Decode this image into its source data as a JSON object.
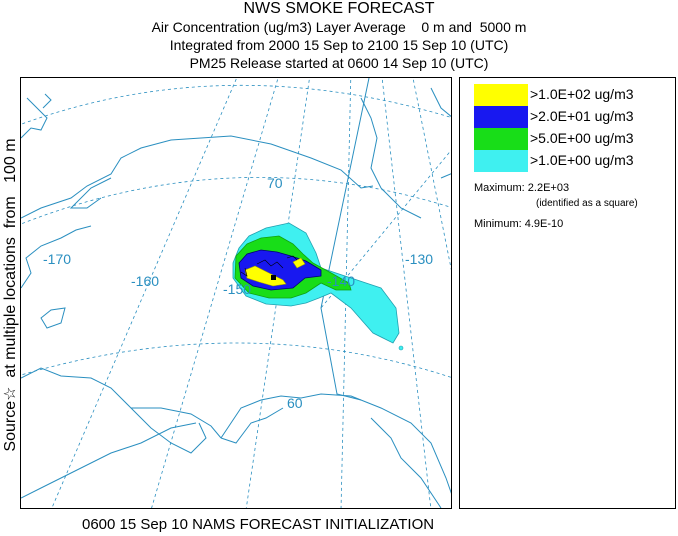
{
  "header": {
    "title": "NWS SMOKE FORECAST",
    "line2": "Air Concentration (ug/m3) Layer Average    0 m and  5000 m",
    "line3": "Integrated from 2000 15 Sep to 2100 15 Sep 10 (UTC)",
    "line4": "PM25 Release started at 0600 14 Sep 10 (UTC)"
  },
  "side_label": "Source☆  at multiple locations  from   100 m",
  "map": {
    "lon_labels": [
      "-170",
      "-160",
      "-150",
      "-140",
      "-130"
    ],
    "lat_labels": [
      "70",
      "60"
    ],
    "colors": {
      "land": "#2a8fc0",
      "grid": "#2a8fc0",
      "cyan": "#3ff0f0",
      "green": "#18dd18",
      "blue": "#1818f0",
      "yellow": "#ffff00"
    }
  },
  "legend": {
    "items": [
      {
        "label": ">1.0E+02 ug/m3",
        "color": "#ffff00"
      },
      {
        "label": ">2.0E+01 ug/m3",
        "color": "#1818f0"
      },
      {
        "label": ">5.0E+00 ug/m3",
        "color": "#18dd18"
      },
      {
        "label": ">1.0E+00 ug/m3",
        "color": "#3ff0f0"
      }
    ],
    "maximum": "Maximum: 2.2E+03",
    "maximum_note": "(identified as a square)",
    "minimum": "Minimum: 4.9E-10"
  },
  "footer": "0600 15 Sep 10 NAMS FORECAST INITIALIZATION"
}
